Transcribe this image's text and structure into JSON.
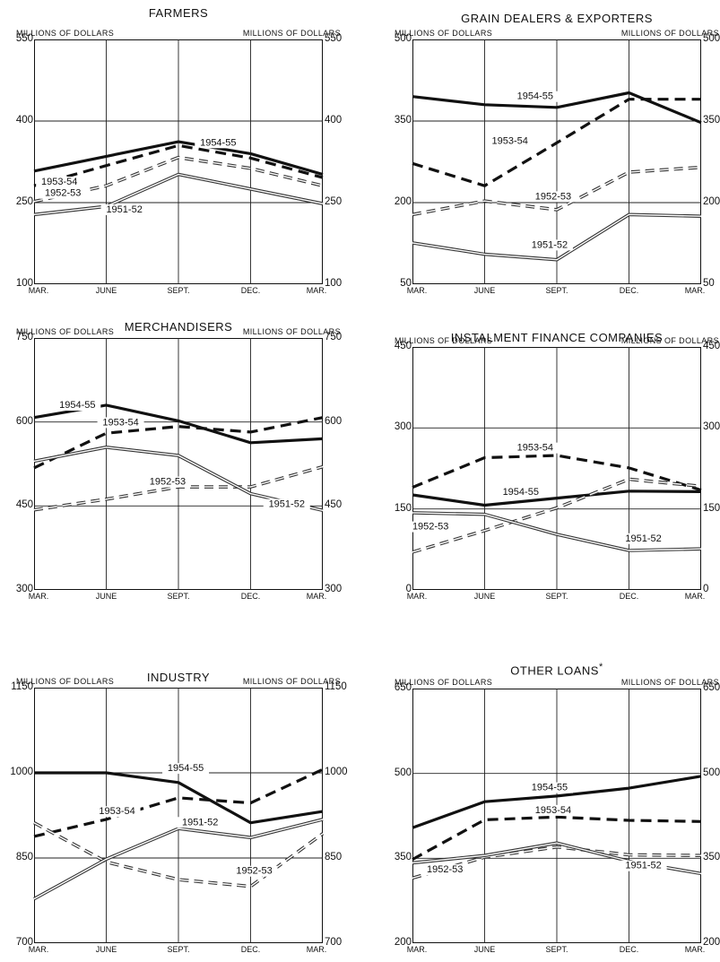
{
  "page": {
    "units_label": "MILLIONS OF DOLLARS"
  },
  "chart_data": [
    {
      "type": "line",
      "title": "FARMERS",
      "ylabel": "MILLIONS OF DOLLARS",
      "categories": [
        "MAR.",
        "JUNE",
        "SEPT.",
        "DEC.",
        "MAR."
      ],
      "ylim": [
        100,
        550
      ],
      "yticks": [
        100,
        250,
        400,
        550
      ],
      "grid": true,
      "series": [
        {
          "name": "1954-55",
          "style": "heavy-solid",
          "values": [
            308,
            335,
            362,
            340,
            302
          ],
          "label_at": [
            2.55,
            355
          ]
        },
        {
          "name": "1953-54",
          "style": "heavy-dashed",
          "values": [
            281,
            318,
            355,
            332,
            296
          ],
          "label_at": [
            0.35,
            283
          ]
        },
        {
          "name": "1952-53",
          "style": "double-dashed",
          "values": [
            252,
            281,
            333,
            313,
            281
          ],
          "label_at": [
            0.4,
            262
          ]
        },
        {
          "name": "1951-52",
          "style": "double-solid",
          "values": [
            228,
            243,
            302,
            275,
            248
          ],
          "label_at": [
            1.25,
            232
          ]
        }
      ]
    },
    {
      "type": "line",
      "title": "GRAIN DEALERS & EXPORTERS",
      "ylabel": "MILLIONS OF DOLLARS",
      "categories": [
        "MAR.",
        "JUNE",
        "SEPT.",
        "DEC.",
        "MAR."
      ],
      "ylim": [
        50,
        500
      ],
      "yticks": [
        50,
        200,
        350,
        500
      ],
      "grid": true,
      "series": [
        {
          "name": "1954-55",
          "style": "heavy-solid",
          "values": [
            395,
            380,
            375,
            402,
            347
          ],
          "label_at": [
            1.7,
            390
          ]
        },
        {
          "name": "1953-54",
          "style": "heavy-dashed",
          "values": [
            272,
            231,
            310,
            390,
            390
          ],
          "label_at": [
            1.35,
            308
          ]
        },
        {
          "name": "1952-53",
          "style": "double-dashed",
          "values": [
            178,
            203,
            187,
            256,
            265
          ],
          "label_at": [
            1.95,
            206
          ]
        },
        {
          "name": "1951-52",
          "style": "double-solid",
          "values": [
            126,
            105,
            95,
            178,
            175
          ],
          "label_at": [
            1.9,
            117
          ]
        }
      ]
    },
    {
      "type": "line",
      "title": "MERCHANDISERS",
      "ylabel": "MILLIONS OF DOLLARS",
      "categories": [
        "MAR.",
        "JUNE",
        "SEPT.",
        "DEC.",
        "MAR."
      ],
      "ylim": [
        300,
        750
      ],
      "yticks": [
        300,
        450,
        600,
        750
      ],
      "grid": true,
      "series": [
        {
          "name": "1954-55",
          "style": "heavy-solid",
          "values": [
            608,
            630,
            602,
            563,
            570
          ],
          "label_at": [
            0.6,
            625
          ]
        },
        {
          "name": "1953-54",
          "style": "heavy-dashed",
          "values": [
            518,
            580,
            592,
            582,
            608
          ],
          "label_at": [
            1.2,
            594
          ]
        },
        {
          "name": "1952-53",
          "style": "double-dashed",
          "values": [
            443,
            462,
            484,
            484,
            520
          ],
          "label_at": [
            1.85,
            488
          ]
        },
        {
          "name": "1951-52",
          "style": "double-solid",
          "values": [
            530,
            555,
            540,
            472,
            442
          ],
          "label_at": [
            3.5,
            448
          ]
        }
      ]
    },
    {
      "type": "line",
      "title": "INSTALMENT FINANCE COMPANIES",
      "ylabel": "MILLIONS OF DOLLARS",
      "categories": [
        "MAR.",
        "JUNE",
        "SEPT.",
        "DEC.",
        "MAR."
      ],
      "ylim": [
        0,
        450
      ],
      "yticks": [
        0,
        150,
        300,
        450
      ],
      "grid": true,
      "series": [
        {
          "name": "1954-55",
          "style": "heavy-solid",
          "values": [
            176,
            157,
            170,
            183,
            182
          ],
          "label_at": [
            1.5,
            176
          ]
        },
        {
          "name": "1953-54",
          "style": "heavy-dashed",
          "values": [
            190,
            245,
            249,
            226,
            185
          ],
          "label_at": [
            1.7,
            258
          ]
        },
        {
          "name": "1952-53",
          "style": "double-dashed",
          "values": [
            70,
            110,
            152,
            205,
            192
          ],
          "label_at": [
            0.25,
            112
          ]
        },
        {
          "name": "1951-52",
          "style": "double-solid",
          "values": [
            143,
            140,
            103,
            73,
            76
          ],
          "label_at": [
            3.2,
            90
          ]
        }
      ]
    },
    {
      "type": "line",
      "title": "INDUSTRY",
      "ylabel": "MILLIONS OF DOLLARS",
      "categories": [
        "MAR.",
        "JUNE",
        "SEPT.",
        "DEC.",
        "MAR."
      ],
      "ylim": [
        700,
        1150
      ],
      "yticks": [
        700,
        850,
        1000,
        1150
      ],
      "grid": true,
      "series": [
        {
          "name": "1954-55",
          "style": "heavy-solid",
          "values": [
            1000,
            1000,
            983,
            912,
            932
          ],
          "label_at": [
            2.1,
            1003
          ]
        },
        {
          "name": "1953-54",
          "style": "heavy-dashed",
          "values": [
            888,
            918,
            956,
            947,
            1006
          ],
          "label_at": [
            1.15,
            927
          ]
        },
        {
          "name": "1952-53",
          "style": "double-dashed",
          "values": [
            912,
            843,
            812,
            800,
            893
          ],
          "label_at": [
            3.05,
            822
          ]
        },
        {
          "name": "1951-52",
          "style": "double-solid",
          "values": [
            778,
            848,
            902,
            886,
            918
          ],
          "label_at": [
            2.3,
            908
          ]
        }
      ]
    },
    {
      "type": "line",
      "title": "OTHER LOANS",
      "title_mark": "*",
      "ylabel": "MILLIONS OF DOLLARS",
      "categories": [
        "MAR.",
        "JUNE",
        "SEPT.",
        "DEC.",
        "MAR."
      ],
      "ylim": [
        200,
        650
      ],
      "yticks": [
        200,
        350,
        500,
        650
      ],
      "grid": true,
      "series": [
        {
          "name": "1954-55",
          "style": "heavy-solid",
          "values": [
            404,
            450,
            460,
            474,
            495
          ],
          "label_at": [
            1.9,
            470
          ]
        },
        {
          "name": "1953-54",
          "style": "heavy-dashed",
          "values": [
            348,
            418,
            423,
            417,
            415
          ],
          "label_at": [
            1.95,
            430
          ]
        },
        {
          "name": "1952-53",
          "style": "double-dashed",
          "values": [
            315,
            352,
            370,
            356,
            355
          ],
          "label_at": [
            0.45,
            325
          ]
        },
        {
          "name": "1951-52",
          "style": "double-solid",
          "values": [
            342,
            355,
            377,
            345,
            323
          ],
          "label_at": [
            3.2,
            332
          ]
        }
      ]
    }
  ]
}
